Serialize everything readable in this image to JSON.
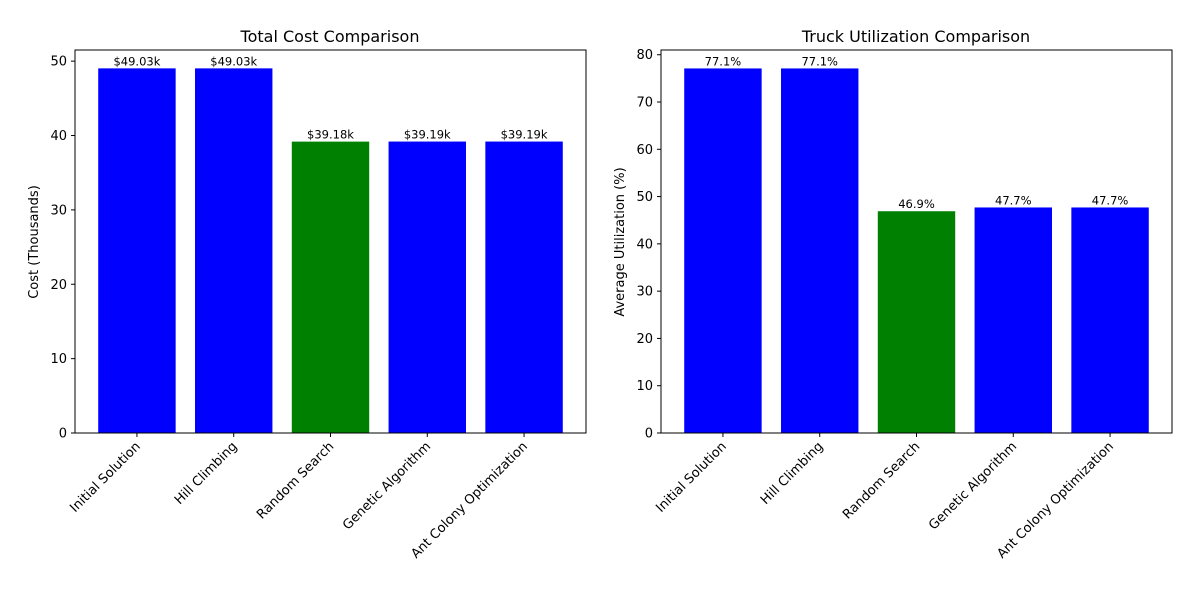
{
  "chart_data": [
    {
      "type": "bar",
      "title": "Total Cost Comparison",
      "xlabel": "",
      "ylabel": "Cost (Thousands)",
      "categories": [
        "Initial Solution",
        "Hill Climbing",
        "Random Search",
        "Genetic Algorithm",
        "Ant Colony Optimization"
      ],
      "values": [
        49.03,
        49.03,
        39.18,
        39.19,
        39.19
      ],
      "bar_labels": [
        "$49.03k",
        "$49.03k",
        "$39.18k",
        "$39.19k",
        "$39.19k"
      ],
      "bar_colors": [
        "#0000ff",
        "#0000ff",
        "#008000",
        "#0000ff",
        "#0000ff"
      ],
      "ylim": [
        0,
        51.5
      ],
      "yticks": [
        0,
        10,
        20,
        30,
        40,
        50
      ],
      "grid": false,
      "legend": "none"
    },
    {
      "type": "bar",
      "title": "Truck Utilization Comparison",
      "xlabel": "",
      "ylabel": "Average Utilization (%)",
      "categories": [
        "Initial Solution",
        "Hill Climbing",
        "Random Search",
        "Genetic Algorithm",
        "Ant Colony Optimization"
      ],
      "values": [
        77.1,
        77.1,
        46.9,
        47.7,
        47.7
      ],
      "bar_labels": [
        "77.1%",
        "77.1%",
        "46.9%",
        "47.7%",
        "47.7%"
      ],
      "bar_colors": [
        "#0000ff",
        "#0000ff",
        "#008000",
        "#0000ff",
        "#0000ff"
      ],
      "ylim": [
        0,
        81
      ],
      "yticks": [
        0,
        10,
        20,
        30,
        40,
        50,
        60,
        70,
        80
      ],
      "grid": false,
      "legend": "none"
    }
  ]
}
